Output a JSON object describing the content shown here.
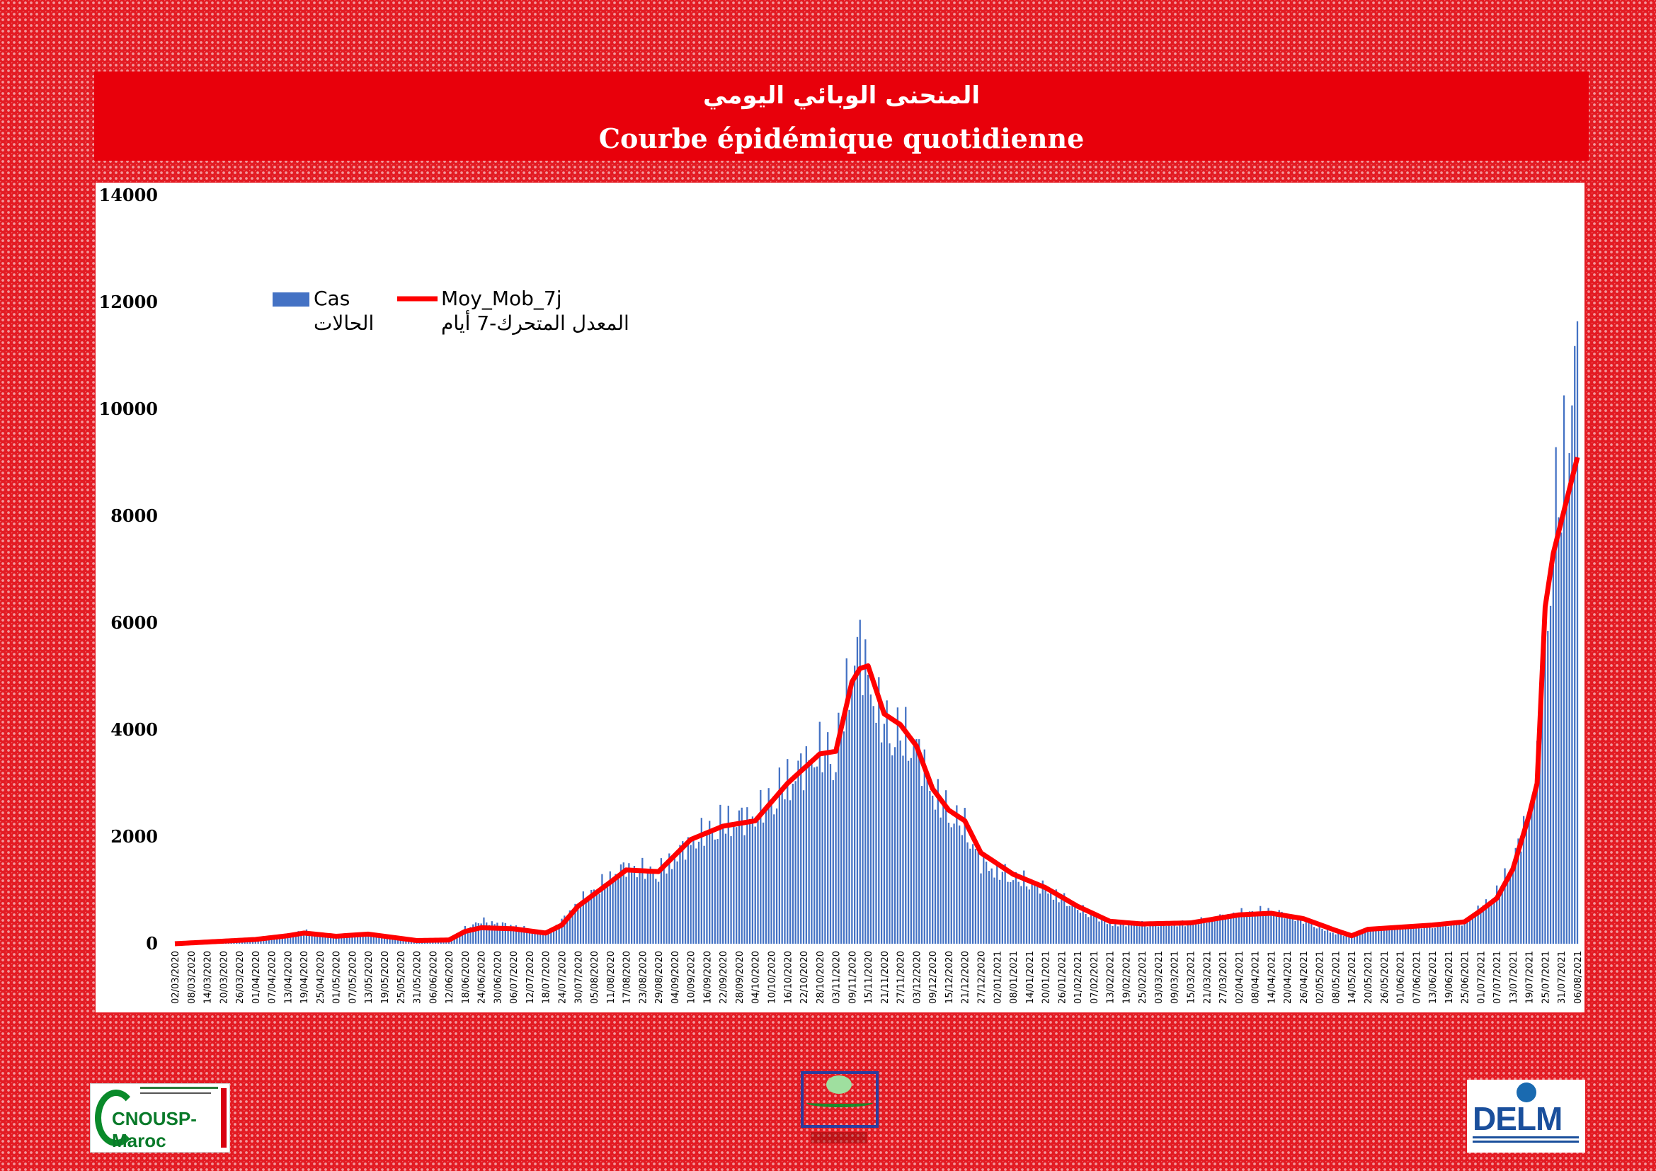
{
  "header": {
    "title_ar": "المنحنى الوبائي اليومي",
    "title_fr": "Courbe épidémique quotidienne"
  },
  "colors": {
    "bars": "#4472c4",
    "moving_average": "#ff0000",
    "header": "#e8000b"
  },
  "logos": [
    {
      "name": "cnousp-maroc-logo",
      "text": "CNOUSP-Maroc"
    },
    {
      "name": "ministry-of-health-logo",
      "text": ""
    },
    {
      "name": "delm-logo",
      "text": "DELM"
    }
  ],
  "chart_data": {
    "type": "bar",
    "title": "",
    "ylim": [
      0,
      14000
    ],
    "yticks": [
      0,
      2000,
      4000,
      6000,
      8000,
      10000,
      12000,
      14000
    ],
    "ytick_labels": [
      "0",
      "2000",
      "4000",
      "6000",
      "8000",
      "10000",
      "12000",
      "14000"
    ],
    "x_start": "02/03/2020",
    "x_end": "06/08/2021",
    "xtick_labels": [
      "02/03/2020",
      "08/03/2020",
      "14/03/2020",
      "20/03/2020",
      "26/03/2020",
      "01/04/2020",
      "07/04/2020",
      "13/04/2020",
      "19/04/2020",
      "25/04/2020",
      "01/05/2020",
      "07/05/2020",
      "13/05/2020",
      "19/05/2020",
      "25/05/2020",
      "31/05/2020",
      "06/06/2020",
      "12/06/2020",
      "18/06/2020",
      "24/06/2020",
      "30/06/2020",
      "06/07/2020",
      "12/07/2020",
      "18/07/2020",
      "24/07/2020",
      "30/07/2020",
      "05/08/2020",
      "11/08/2020",
      "17/08/2020",
      "23/08/2020",
      "29/08/2020",
      "04/09/2020",
      "10/09/2020",
      "16/09/2020",
      "22/09/2020",
      "28/09/2020",
      "04/10/2020",
      "10/10/2020",
      "16/10/2020",
      "22/10/2020",
      "28/10/2020",
      "03/11/2020",
      "09/11/2020",
      "15/11/2020",
      "21/11/2020",
      "27/11/2020",
      "03/12/2020",
      "09/12/2020",
      "15/12/2020",
      "21/12/2020",
      "27/12/2020",
      "02/01/2021",
      "08/01/2021",
      "14/01/2021",
      "20/01/2021",
      "26/01/2021",
      "01/02/2021",
      "07/02/2021",
      "13/02/2021",
      "19/02/2021",
      "25/02/2021",
      "03/03/2021",
      "09/03/2021",
      "15/03/2021",
      "21/03/2021",
      "27/03/2021",
      "02/04/2021",
      "08/04/2021",
      "14/04/2021",
      "20/04/2021",
      "26/04/2021",
      "02/05/2021",
      "08/05/2021",
      "14/05/2021",
      "20/05/2021",
      "26/05/2021",
      "01/06/2021",
      "07/06/2021",
      "13/06/2021",
      "19/06/2021",
      "25/06/2021",
      "01/07/2021",
      "07/07/2021",
      "13/07/2021",
      "19/07/2021",
      "25/07/2021",
      "31/07/2021",
      "06/08/2021"
    ],
    "series": [
      {
        "name": "Cas",
        "name_ar": "الحالات",
        "type": "bar",
        "anchor_dates": [
          "02/03/2020",
          "01/04/2020",
          "13/04/2020",
          "19/04/2020",
          "01/05/2020",
          "13/05/2020",
          "31/05/2020",
          "12/06/2020",
          "18/06/2020",
          "24/06/2020",
          "06/07/2020",
          "18/07/2020",
          "24/07/2020",
          "30/07/2020",
          "11/08/2020",
          "17/08/2020",
          "29/08/2020",
          "10/09/2020",
          "22/09/2020",
          "04/10/2020",
          "16/10/2020",
          "28/10/2020",
          "03/11/2020",
          "09/11/2020",
          "12/11/2020",
          "15/11/2020",
          "21/11/2020",
          "27/11/2020",
          "03/12/2020",
          "09/12/2020",
          "15/12/2020",
          "21/12/2020",
          "27/12/2020",
          "08/01/2021",
          "20/01/2021",
          "01/02/2021",
          "13/02/2021",
          "25/02/2021",
          "15/03/2021",
          "02/04/2021",
          "14/04/2021",
          "26/04/2021",
          "08/05/2021",
          "14/05/2021",
          "20/05/2021",
          "01/06/2021",
          "13/06/2021",
          "25/06/2021",
          "01/07/2021",
          "07/07/2021",
          "13/07/2021",
          "19/07/2021",
          "22/07/2021",
          "25/07/2021",
          "28/07/2021",
          "31/07/2021",
          "03/08/2021",
          "06/08/2021"
        ],
        "anchor_values": [
          0,
          100,
          180,
          250,
          150,
          200,
          60,
          80,
          300,
          450,
          350,
          200,
          450,
          800,
          1300,
          1500,
          1400,
          2000,
          2400,
          2500,
          3200,
          3800,
          3700,
          5500,
          5900,
          5200,
          4300,
          4100,
          3900,
          3000,
          2600,
          2300,
          1600,
          1300,
          1100,
          700,
          400,
          380,
          400,
          600,
          650,
          450,
          200,
          150,
          280,
          320,
          350,
          420,
          700,
          1000,
          1600,
          2600,
          3500,
          5500,
          8500,
          8800,
          10500,
          11500
        ]
      },
      {
        "name": "Moy_Mob_7j",
        "name_ar": "المعدل المتحرك-7 أيام",
        "type": "line",
        "anchor_dates": [
          "02/03/2020",
          "01/04/2020",
          "13/04/2020",
          "19/04/2020",
          "01/05/2020",
          "13/05/2020",
          "31/05/2020",
          "12/06/2020",
          "18/06/2020",
          "24/06/2020",
          "06/07/2020",
          "18/07/2020",
          "24/07/2020",
          "30/07/2020",
          "11/08/2020",
          "17/08/2020",
          "29/08/2020",
          "10/09/2020",
          "22/09/2020",
          "04/10/2020",
          "16/10/2020",
          "28/10/2020",
          "03/11/2020",
          "09/11/2020",
          "12/11/2020",
          "15/11/2020",
          "21/11/2020",
          "27/11/2020",
          "03/12/2020",
          "09/12/2020",
          "15/12/2020",
          "21/12/2020",
          "27/12/2020",
          "08/01/2021",
          "20/01/2021",
          "01/02/2021",
          "13/02/2021",
          "25/02/2021",
          "15/03/2021",
          "02/04/2021",
          "14/04/2021",
          "26/04/2021",
          "08/05/2021",
          "14/05/2021",
          "20/05/2021",
          "01/06/2021",
          "13/06/2021",
          "25/06/2021",
          "01/07/2021",
          "07/07/2021",
          "13/07/2021",
          "19/07/2021",
          "22/07/2021",
          "25/07/2021",
          "28/07/2021",
          "31/07/2021",
          "03/08/2021",
          "06/08/2021"
        ],
        "anchor_values": [
          0,
          80,
          150,
          200,
          140,
          180,
          60,
          70,
          230,
          300,
          280,
          200,
          350,
          700,
          1150,
          1380,
          1350,
          1950,
          2200,
          2300,
          3000,
          3550,
          3600,
          4900,
          5150,
          5200,
          4300,
          4100,
          3700,
          2900,
          2500,
          2300,
          1700,
          1300,
          1050,
          700,
          420,
          370,
          390,
          540,
          570,
          470,
          250,
          150,
          270,
          310,
          350,
          410,
          620,
          850,
          1400,
          2400,
          3000,
          6300,
          7300,
          7900,
          8500,
          9100
        ]
      }
    ],
    "legend": {
      "position": "top-left",
      "entries": [
        "Cas",
        "Moy_Mob_7j"
      ],
      "entries_ar": [
        "الحالات",
        "المعدل المتحرك-7 أيام"
      ]
    },
    "grid": false
  }
}
